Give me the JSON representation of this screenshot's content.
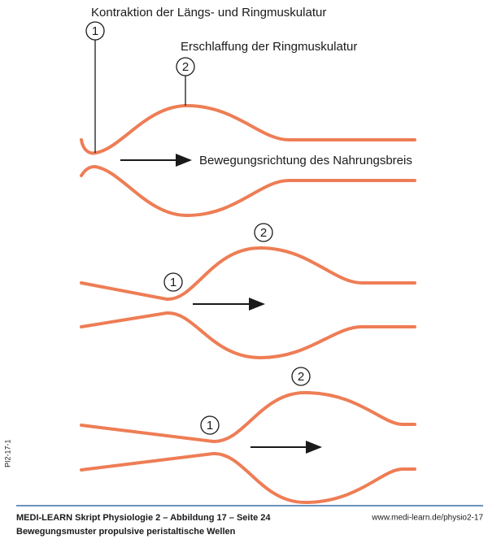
{
  "annotations": {
    "contraction": "Kontraktion der Längs- und Ringmuskulatur",
    "relaxation": "Erschlaffung der Ringmuskulatur",
    "direction": "Bewegungsrichtung des Nahrungsbreis"
  },
  "panels": [
    {
      "markers": [
        "1",
        "2"
      ]
    },
    {
      "markers": [
        "1",
        "2"
      ]
    },
    {
      "markers": [
        "1",
        "2"
      ]
    }
  ],
  "side_code": "PI2-17-1",
  "footer": {
    "source": "MEDI-LEARN Skript Physiologie 2 – Abbildung 17 – Seite 24",
    "url": "www.medi-learn.de/physio2-17",
    "caption": "Bewegungsmuster propulsive peristaltische Wellen"
  }
}
